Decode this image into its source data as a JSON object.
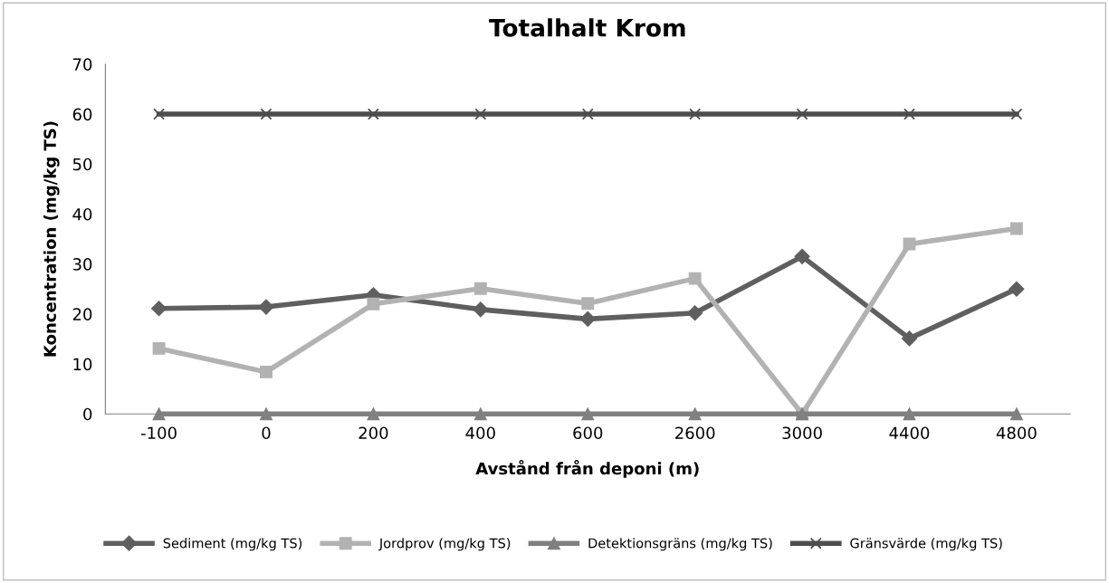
{
  "chart_data": {
    "type": "line",
    "title": "Totalhalt Krom",
    "xlabel": "Avstånd från deponi (m)",
    "ylabel": "Koncentration (mg/kg TS)",
    "categories": [
      "-100",
      "0",
      "200",
      "400",
      "600",
      "2600",
      "3000",
      "4400",
      "4800"
    ],
    "series": [
      {
        "name": "Sediment (mg/kg TS)",
        "color": "#5f5f5f",
        "marker": "diamond",
        "values": [
          21.1,
          21.4,
          23.8,
          20.9,
          19.0,
          20.2,
          31.5,
          15.1,
          25.0
        ]
      },
      {
        "name": "Jordprov (mg/kg TS)",
        "color": "#b2b2b2",
        "marker": "square",
        "values": [
          13.1,
          8.4,
          22.0,
          25.1,
          22.1,
          27.1,
          0,
          34.0,
          37.1
        ]
      },
      {
        "name": "Detektionsgräns (mg/kg TS)",
        "color": "#808080",
        "marker": "triangle",
        "values": [
          0,
          0,
          0,
          0,
          0,
          0,
          0,
          0,
          0
        ]
      },
      {
        "name": "Gränsvärde (mg/kg TS)",
        "color": "#4d4d4d",
        "marker": "cross",
        "values": [
          60,
          60,
          60,
          60,
          60,
          60,
          60,
          60,
          60
        ]
      }
    ],
    "ylim": [
      0,
      70
    ],
    "yticks": [
      0,
      10,
      20,
      30,
      40,
      50,
      60,
      70
    ],
    "grid": false,
    "legend": "bottom",
    "line_style": "solid"
  }
}
